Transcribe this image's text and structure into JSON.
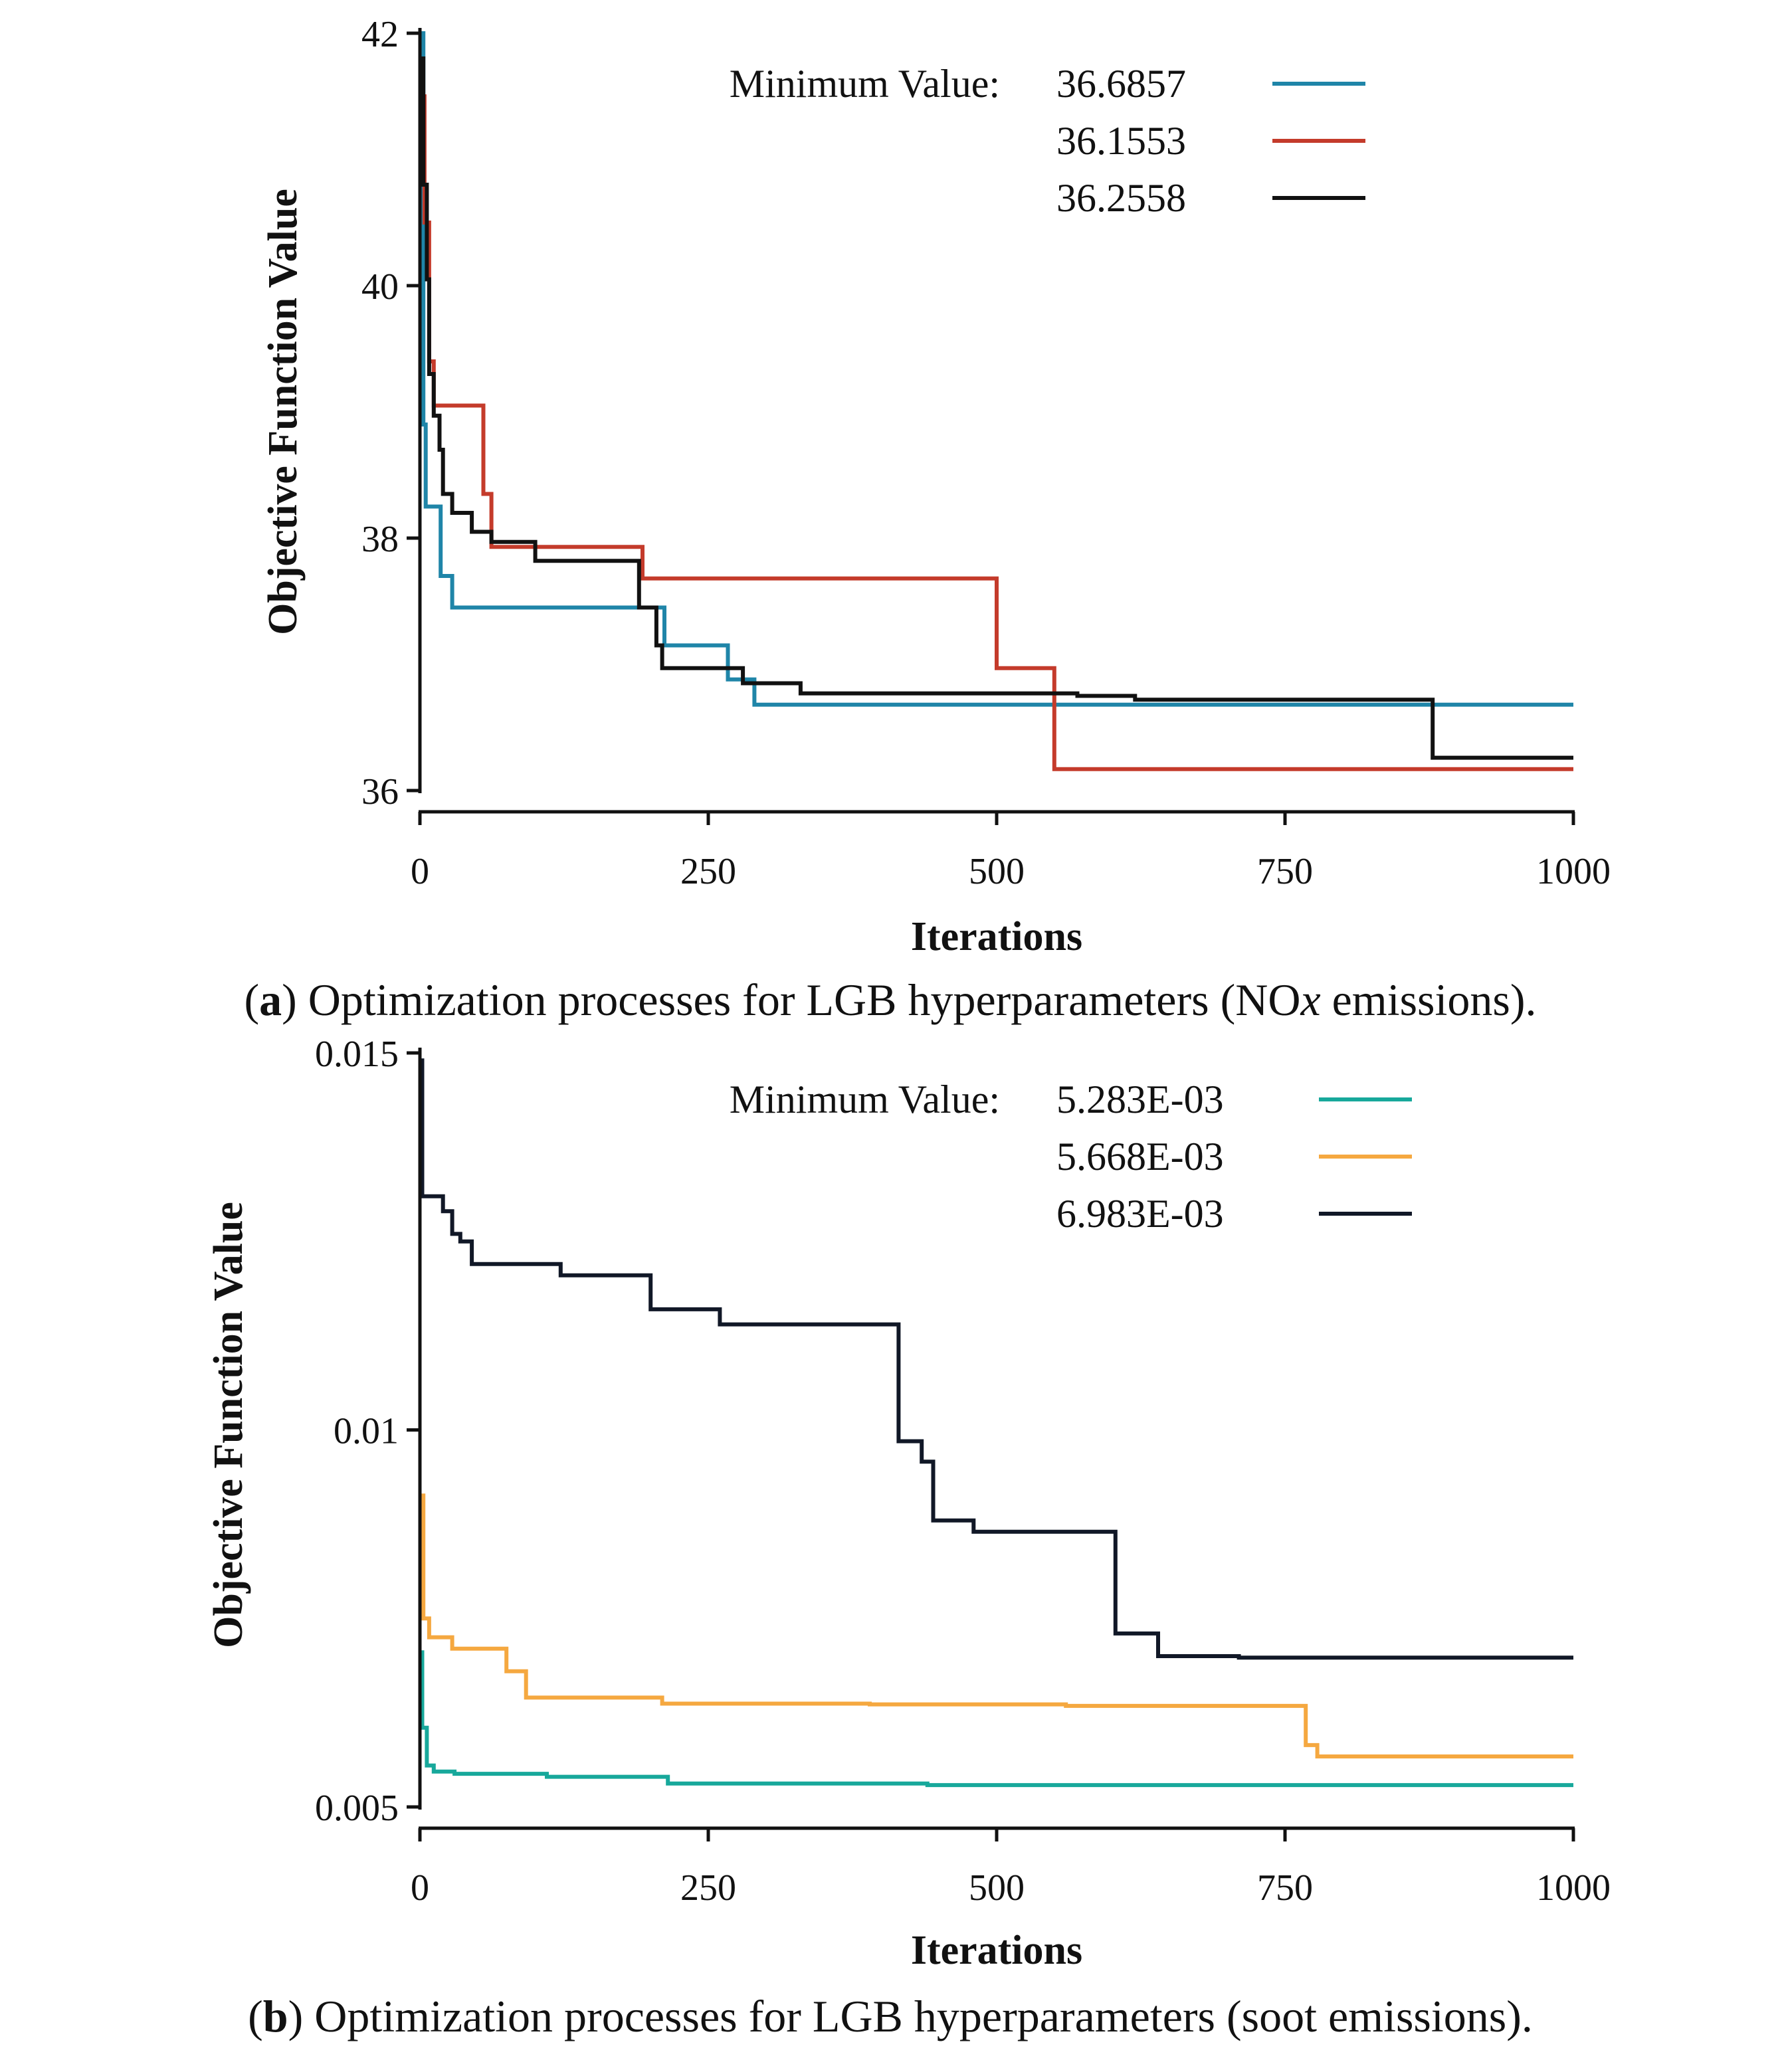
{
  "chart_data": [
    {
      "type": "line",
      "id": "a",
      "xlabel": "Iterations",
      "ylabel": "Objective Function Value",
      "xlim": [
        0,
        1000
      ],
      "ylim": [
        36,
        42
      ],
      "xticks": [
        0,
        250,
        500,
        750,
        1000
      ],
      "xtick_labels": [
        "0",
        "250",
        "500",
        "750",
        "1000"
      ],
      "yticks": [
        36,
        38,
        40,
        42
      ],
      "ytick_labels": [
        "36",
        "38",
        "40",
        "42"
      ],
      "legend_title": "Minimum Value:",
      "legend_position": "top-right",
      "caption": {
        "label": "a",
        "text_before": " Optimization processes for LGB hyperparameters (NO",
        "italic": "x",
        "text_after": " emissions)."
      },
      "series": [
        {
          "name": "36.6857",
          "color": "#1f85a8",
          "points": [
            [
              0,
              42
            ],
            [
              3,
              42
            ],
            [
              3,
              38.9
            ],
            [
              5,
              38.9
            ],
            [
              5,
              38.25
            ],
            [
              18,
              38.25
            ],
            [
              18,
              37.7
            ],
            [
              28,
              37.7
            ],
            [
              28,
              37.45
            ],
            [
              195,
              37.45
            ],
            [
              195,
              37.45
            ],
            [
              212,
              37.45
            ],
            [
              212,
              37.15
            ],
            [
              267,
              37.15
            ],
            [
              267,
              36.88
            ],
            [
              290,
              36.88
            ],
            [
              290,
              36.68
            ],
            [
              1000,
              36.68
            ]
          ]
        },
        {
          "name": "36.1553",
          "color": "#c43b2b",
          "points": [
            [
              0,
              41.5
            ],
            [
              4,
              41.5
            ],
            [
              4,
              40.5
            ],
            [
              8,
              40.5
            ],
            [
              8,
              39.4
            ],
            [
              12,
              39.4
            ],
            [
              12,
              39.05
            ],
            [
              55,
              39.05
            ],
            [
              55,
              38.35
            ],
            [
              62,
              38.35
            ],
            [
              62,
              37.93
            ],
            [
              193,
              37.93
            ],
            [
              193,
              37.68
            ],
            [
              500,
              37.68
            ],
            [
              500,
              36.97
            ],
            [
              550,
              36.97
            ],
            [
              550,
              36.17
            ],
            [
              1000,
              36.17
            ]
          ]
        },
        {
          "name": "36.2558",
          "color": "#111111",
          "points": [
            [
              0,
              41.8
            ],
            [
              3,
              41.8
            ],
            [
              3,
              40.8
            ],
            [
              6,
              40.8
            ],
            [
              6,
              40.05
            ],
            [
              8,
              40.05
            ],
            [
              8,
              39.3
            ],
            [
              12,
              39.3
            ],
            [
              12,
              38.97
            ],
            [
              17,
              38.97
            ],
            [
              17,
              38.7
            ],
            [
              20,
              38.7
            ],
            [
              20,
              38.35
            ],
            [
              28,
              38.35
            ],
            [
              28,
              38.2
            ],
            [
              45,
              38.2
            ],
            [
              45,
              38.05
            ],
            [
              62,
              38.05
            ],
            [
              62,
              37.97
            ],
            [
              100,
              37.97
            ],
            [
              100,
              37.82
            ],
            [
              190,
              37.82
            ],
            [
              190,
              37.45
            ],
            [
              205,
              37.45
            ],
            [
              205,
              37.15
            ],
            [
              210,
              37.15
            ],
            [
              210,
              36.97
            ],
            [
              280,
              36.97
            ],
            [
              280,
              36.85
            ],
            [
              330,
              36.85
            ],
            [
              330,
              36.77
            ],
            [
              570,
              36.77
            ],
            [
              570,
              36.75
            ],
            [
              620,
              36.75
            ],
            [
              620,
              36.72
            ],
            [
              878,
              36.72
            ],
            [
              878,
              36.26
            ],
            [
              1000,
              36.26
            ]
          ]
        }
      ]
    },
    {
      "type": "line",
      "id": "b",
      "xlabel": "Iterations",
      "ylabel": "Objective Function Value",
      "xlim": [
        0,
        1000
      ],
      "ylim": [
        0.005,
        0.015
      ],
      "xticks": [
        0,
        250,
        500,
        750,
        1000
      ],
      "xtick_labels": [
        "0",
        "250",
        "500",
        "750",
        "1000"
      ],
      "yticks": [
        0.005,
        0.01,
        0.015
      ],
      "ytick_labels": [
        "0.005",
        "0.01",
        "0.015"
      ],
      "legend_title": "Minimum Value:",
      "legend_position": "top-right",
      "caption": {
        "label": "b",
        "text_before": " Optimization processes for LGB hyperparameters (soot emissions).",
        "italic": "",
        "text_after": ""
      },
      "series": [
        {
          "name": "5.283E-03",
          "color": "#17a89b",
          "points": [
            [
              0,
              0.00705
            ],
            [
              2,
              0.00705
            ],
            [
              2,
              0.00605
            ],
            [
              6,
              0.00605
            ],
            [
              6,
              0.00555
            ],
            [
              12,
              0.00555
            ],
            [
              12,
              0.00547
            ],
            [
              30,
              0.00547
            ],
            [
              30,
              0.00544
            ],
            [
              110,
              0.00544
            ],
            [
              110,
              0.0054
            ],
            [
              215,
              0.0054
            ],
            [
              215,
              0.00531
            ],
            [
              440,
              0.00531
            ],
            [
              440,
              0.00529
            ],
            [
              1000,
              0.00529
            ]
          ]
        },
        {
          "name": "5.668E-03",
          "color": "#f5a840",
          "points": [
            [
              0,
              0.00913
            ],
            [
              3,
              0.00913
            ],
            [
              3,
              0.0075
            ],
            [
              8,
              0.0075
            ],
            [
              8,
              0.00725
            ],
            [
              28,
              0.00725
            ],
            [
              28,
              0.0071
            ],
            [
              75,
              0.0071
            ],
            [
              75,
              0.0068
            ],
            [
              92,
              0.0068
            ],
            [
              92,
              0.00645
            ],
            [
              210,
              0.00645
            ],
            [
              210,
              0.00637
            ],
            [
              390,
              0.00637
            ],
            [
              390,
              0.00636
            ],
            [
              560,
              0.00636
            ],
            [
              560,
              0.00634
            ],
            [
              768,
              0.00634
            ],
            [
              768,
              0.00582
            ],
            [
              778,
              0.00582
            ],
            [
              778,
              0.00567
            ],
            [
              1000,
              0.00567
            ]
          ]
        },
        {
          "name": "6.983E-03",
          "color": "#111827",
          "points": [
            [
              0,
              0.0149
            ],
            [
              2,
              0.0149
            ],
            [
              2,
              0.0131
            ],
            [
              20,
              0.0131
            ],
            [
              20,
              0.0129
            ],
            [
              28,
              0.0129
            ],
            [
              28,
              0.0126
            ],
            [
              35,
              0.0126
            ],
            [
              35,
              0.0125
            ],
            [
              45,
              0.0125
            ],
            [
              45,
              0.0122
            ],
            [
              122,
              0.0122
            ],
            [
              122,
              0.01205
            ],
            [
              200,
              0.01205
            ],
            [
              200,
              0.0116
            ],
            [
              260,
              0.0116
            ],
            [
              260,
              0.0114
            ],
            [
              415,
              0.0114
            ],
            [
              415,
              0.00985
            ],
            [
              435,
              0.00985
            ],
            [
              435,
              0.00958
            ],
            [
              445,
              0.00958
            ],
            [
              445,
              0.0088
            ],
            [
              480,
              0.0088
            ],
            [
              480,
              0.00865
            ],
            [
              603,
              0.00865
            ],
            [
              603,
              0.0073
            ],
            [
              640,
              0.0073
            ],
            [
              640,
              0.007
            ],
            [
              710,
              0.007
            ],
            [
              710,
              0.00698
            ],
            [
              1000,
              0.00698
            ]
          ]
        }
      ]
    }
  ]
}
